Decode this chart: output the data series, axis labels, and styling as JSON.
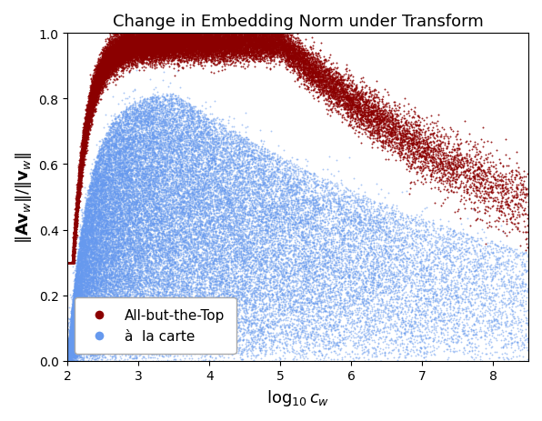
{
  "title": "Change in Embedding Norm under Transform",
  "xlabel": "$\\log_{10} c_w$",
  "ylabel": "$\\|\\mathbf{Av}_w\\| / \\|\\mathbf{v}_w\\|$",
  "xlim": [
    2,
    8.5
  ],
  "ylim": [
    0.0,
    1.0
  ],
  "xticks": [
    2,
    3,
    4,
    5,
    6,
    7,
    8
  ],
  "yticks": [
    0.0,
    0.2,
    0.4,
    0.6,
    0.8,
    1.0
  ],
  "color_abtt": "#8B0000",
  "color_alc": "#6699EE",
  "legend_label_abtt": "All-but-the-Top",
  "legend_label_alc": "à  la carte",
  "n_abtt": 30000,
  "n_alc": 50000,
  "seed": 42,
  "marker_size_abtt": 2.0,
  "marker_size_alc": 1.8,
  "alpha_abtt": 0.85,
  "alpha_alc": 0.55,
  "background_color": "#ffffff",
  "title_fontsize": 13,
  "label_fontsize": 13
}
